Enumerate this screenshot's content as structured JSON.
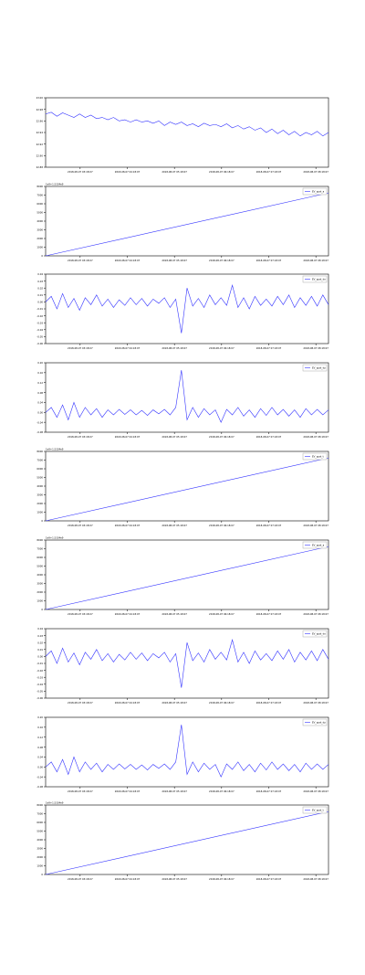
{
  "chart_data": [
    {
      "type": "line",
      "legend": "",
      "offset_label": "",
      "ylim": [
        22.88,
        23.0
      ],
      "yticks": [
        "22.88",
        "22.90",
        "22.92",
        "22.94",
        "22.96",
        "22.98",
        "23.00"
      ],
      "xticks": [
        "2018-08-07 03:18:07",
        "2018-08-07 04:18:07",
        "2018-08-07 05:18:07",
        "2018-08-07 06:18:07",
        "2018-08-07 07:18:07",
        "2018-08-07 08:18:07"
      ],
      "ticks_visible_on_x": true,
      "color": "#3333ff",
      "series": [
        {
          "x": [
            0,
            2,
            4,
            6,
            8,
            10,
            12,
            14,
            16,
            18,
            20,
            22,
            24,
            26,
            28,
            30,
            32,
            34,
            36,
            38,
            40,
            42,
            44,
            46,
            48,
            50,
            52,
            54,
            56,
            58,
            60,
            62,
            64,
            66,
            68,
            70,
            72,
            74,
            76,
            78,
            80,
            82,
            84,
            86,
            88,
            90,
            92,
            94,
            96,
            98,
            100
          ],
          "values": [
            22.972,
            22.975,
            22.968,
            22.974,
            22.97,
            22.966,
            22.972,
            22.966,
            22.97,
            22.964,
            22.966,
            22.962,
            22.966,
            22.96,
            22.962,
            22.958,
            22.962,
            22.958,
            22.96,
            22.956,
            22.96,
            22.952,
            22.958,
            22.954,
            22.958,
            22.952,
            22.955,
            22.95,
            22.956,
            22.952,
            22.954,
            22.95,
            22.955,
            22.948,
            22.952,
            22.946,
            22.95,
            22.944,
            22.948,
            22.94,
            22.946,
            22.938,
            22.944,
            22.936,
            22.942,
            22.934,
            22.94,
            22.936,
            22.942,
            22.934,
            22.94
          ]
        }
      ]
    },
    {
      "type": "line",
      "legend": "EV_spot_a",
      "offset_label": "1e9+1.5334e9",
      "ylim": [
        0,
        8000
      ],
      "yticks": [
        "0",
        "1000",
        "2000",
        "3000",
        "4000",
        "5000",
        "6000",
        "7000",
        "8000"
      ],
      "xticks": [
        "2018-08-07 03:18:07",
        "2018-08-07 04:18:07",
        "2018-08-07 05:18:07",
        "2018-08-07 06:18:07",
        "2018-08-07 07:18:07",
        "2018-08-07 08:18:07"
      ],
      "color": "#3333ff",
      "series": [
        {
          "x": [
            0,
            100
          ],
          "values": [
            0,
            7250
          ]
        }
      ]
    },
    {
      "type": "line",
      "legend": "EV_spot_dx",
      "offset_label": "",
      "ylim": [
        -0.06,
        0.04
      ],
      "yticks": [
        "-0.06",
        "-0.05",
        "-0.04",
        "-0.03",
        "-0.02",
        "-0.01",
        "0.00",
        "0.01",
        "0.02",
        "0.03",
        "0.04"
      ],
      "xticks": [
        "2018-08-07 03:18:07",
        "2018-08-07 04:18:07",
        "2018-08-07 05:18:07",
        "2018-08-07 06:18:07",
        "2018-08-07 07:18:07",
        "2018-08-07 08:18:07"
      ],
      "color": "#3333ff",
      "series": [
        {
          "x": [
            0,
            2,
            4,
            6,
            8,
            10,
            12,
            14,
            16,
            18,
            20,
            22,
            24,
            26,
            28,
            30,
            32,
            34,
            36,
            38,
            40,
            42,
            44,
            46,
            48,
            50,
            52,
            54,
            56,
            58,
            60,
            62,
            64,
            66,
            68,
            70,
            72,
            74,
            76,
            78,
            80,
            82,
            84,
            86,
            88,
            90,
            92,
            94,
            96,
            98,
            100
          ],
          "values": [
            0,
            0.008,
            -0.01,
            0.012,
            -0.008,
            0.005,
            -0.012,
            0.006,
            -0.004,
            0.01,
            -0.006,
            0.004,
            -0.008,
            0.003,
            -0.005,
            0.006,
            -0.004,
            0.005,
            -0.006,
            0.004,
            -0.002,
            0.006,
            -0.008,
            0.004,
            -0.045,
            0.02,
            -0.006,
            0.005,
            -0.008,
            0.01,
            -0.004,
            0.006,
            -0.005,
            0.024,
            -0.008,
            0.006,
            -0.01,
            0.008,
            -0.005,
            0.004,
            -0.006,
            0.008,
            -0.004,
            0.01,
            -0.008,
            0.006,
            -0.005,
            0.008,
            -0.006,
            0.01,
            -0.004
          ]
        }
      ]
    },
    {
      "type": "line",
      "legend": "EV_spot_dy",
      "offset_label": "",
      "ylim": [
        -0.08,
        0.2
      ],
      "yticks": [
        "-0.08",
        "-0.04",
        "0.00",
        "0.04",
        "0.08",
        "0.12",
        "0.16",
        "0.20"
      ],
      "xticks": [
        "2018-08-07 03:18:07",
        "2018-08-07 04:18:07",
        "2018-08-07 05:18:07",
        "2018-08-07 06:18:07",
        "2018-08-07 07:18:07",
        "2018-08-07 08:18:07"
      ],
      "color": "#3333ff",
      "series": [
        {
          "x": [
            0,
            2,
            4,
            6,
            8,
            10,
            12,
            14,
            16,
            18,
            20,
            22,
            24,
            26,
            28,
            30,
            32,
            34,
            36,
            38,
            40,
            42,
            44,
            46,
            48,
            50,
            52,
            54,
            56,
            58,
            60,
            62,
            64,
            66,
            68,
            70,
            72,
            74,
            76,
            78,
            80,
            82,
            84,
            86,
            88,
            90,
            92,
            94,
            96,
            98,
            100
          ],
          "values": [
            0,
            0.02,
            -0.02,
            0.03,
            -0.03,
            0.04,
            -0.02,
            0.02,
            -0.01,
            0.015,
            -0.02,
            0.01,
            -0.01,
            0.012,
            -0.008,
            0.01,
            -0.01,
            0.008,
            -0.012,
            0.01,
            -0.006,
            0.012,
            -0.01,
            0.02,
            0.17,
            -0.03,
            0.02,
            -0.02,
            0.015,
            -0.01,
            0.01,
            -0.04,
            0.012,
            -0.01,
            0.02,
            -0.015,
            0.01,
            -0.02,
            0.015,
            -0.012,
            0.02,
            -0.01,
            0.012,
            -0.015,
            0.01,
            -0.02,
            0.015,
            -0.01,
            0.012,
            -0.01,
            0.01
          ]
        }
      ]
    },
    {
      "type": "line",
      "legend": "EV_spot_t",
      "offset_label": "1e9+1.5334e9",
      "ylim": [
        0,
        8000
      ],
      "yticks": [
        "0",
        "1000",
        "2000",
        "3000",
        "4000",
        "5000",
        "6000",
        "7000",
        "8000"
      ],
      "xticks": [
        "2018-08-07 03:18:07",
        "2018-08-07 04:18:07",
        "2018-08-07 05:18:07",
        "2018-08-07 06:18:07",
        "2018-08-07 07:18:07",
        "2018-08-07 08:18:07"
      ],
      "color": "#3333ff",
      "series": [
        {
          "x": [
            0,
            100
          ],
          "values": [
            0,
            7250
          ]
        }
      ]
    },
    {
      "type": "line",
      "legend": "EV_spot_a",
      "offset_label": "1e9+1.5334e9",
      "ylim": [
        0,
        8000
      ],
      "yticks": [
        "0",
        "1000",
        "2000",
        "3000",
        "4000",
        "5000",
        "6000",
        "7000",
        "8000"
      ],
      "xticks": [
        "2018-08-07 03:18:07",
        "2018-08-07 04:18:07",
        "2018-08-07 05:18:07",
        "2018-08-07 06:18:07",
        "2018-08-07 07:18:07",
        "2018-08-07 08:18:07"
      ],
      "color": "#3333ff",
      "series": [
        {
          "x": [
            0,
            100
          ],
          "values": [
            0,
            7250
          ]
        }
      ]
    },
    {
      "type": "line",
      "legend": "EV_spot_dx",
      "offset_label": "",
      "ylim": [
        -0.06,
        0.04
      ],
      "yticks": [
        "-0.06",
        "-0.05",
        "-0.04",
        "-0.03",
        "-0.02",
        "-0.01",
        "0.00",
        "0.01",
        "0.02",
        "0.03",
        "0.04"
      ],
      "xticks": [
        "2018-08-07 03:18:07",
        "2018-08-07 04:18:07",
        "2018-08-07 05:18:07",
        "2018-08-07 06:18:07",
        "2018-08-07 07:18:07",
        "2018-08-07 08:18:07"
      ],
      "color": "#3333ff",
      "series": [
        {
          "x": [
            0,
            2,
            4,
            6,
            8,
            10,
            12,
            14,
            16,
            18,
            20,
            22,
            24,
            26,
            28,
            30,
            32,
            34,
            36,
            38,
            40,
            42,
            44,
            46,
            48,
            50,
            52,
            54,
            56,
            58,
            60,
            62,
            64,
            66,
            68,
            70,
            72,
            74,
            76,
            78,
            80,
            82,
            84,
            86,
            88,
            90,
            92,
            94,
            96,
            98,
            100
          ],
          "values": [
            0,
            0.008,
            -0.01,
            0.012,
            -0.008,
            0.005,
            -0.012,
            0.006,
            -0.004,
            0.01,
            -0.006,
            0.004,
            -0.008,
            0.003,
            -0.005,
            0.006,
            -0.004,
            0.005,
            -0.006,
            0.004,
            -0.002,
            0.006,
            -0.008,
            0.004,
            -0.045,
            0.02,
            -0.006,
            0.005,
            -0.008,
            0.01,
            -0.004,
            0.006,
            -0.005,
            0.024,
            -0.008,
            0.006,
            -0.01,
            0.008,
            -0.005,
            0.004,
            -0.006,
            0.008,
            -0.004,
            0.01,
            -0.008,
            0.006,
            -0.005,
            0.008,
            -0.006,
            0.01,
            -0.004
          ]
        }
      ]
    },
    {
      "type": "line",
      "legend": "EV_spot_dy",
      "offset_label": "",
      "ylim": [
        -0.08,
        0.2
      ],
      "yticks": [
        "-0.08",
        "-0.04",
        "0.00",
        "0.04",
        "0.08",
        "0.12",
        "0.16",
        "0.20"
      ],
      "xticks": [
        "2018-08-07 03:18:07",
        "2018-08-07 04:18:07",
        "2018-08-07 05:18:07",
        "2018-08-07 06:18:07",
        "2018-08-07 07:18:07",
        "2018-08-07 08:18:07"
      ],
      "color": "#3333ff",
      "series": [
        {
          "x": [
            0,
            2,
            4,
            6,
            8,
            10,
            12,
            14,
            16,
            18,
            20,
            22,
            24,
            26,
            28,
            30,
            32,
            34,
            36,
            38,
            40,
            42,
            44,
            46,
            48,
            50,
            52,
            54,
            56,
            58,
            60,
            62,
            64,
            66,
            68,
            70,
            72,
            74,
            76,
            78,
            80,
            82,
            84,
            86,
            88,
            90,
            92,
            94,
            96,
            98,
            100
          ],
          "values": [
            0,
            0.02,
            -0.02,
            0.03,
            -0.03,
            0.04,
            -0.02,
            0.02,
            -0.01,
            0.015,
            -0.02,
            0.01,
            -0.01,
            0.012,
            -0.008,
            0.01,
            -0.01,
            0.008,
            -0.012,
            0.01,
            -0.006,
            0.012,
            -0.01,
            0.02,
            0.17,
            -0.03,
            0.02,
            -0.02,
            0.015,
            -0.01,
            0.01,
            -0.04,
            0.012,
            -0.01,
            0.02,
            -0.015,
            0.01,
            -0.02,
            0.015,
            -0.012,
            0.02,
            -0.01,
            0.012,
            -0.015,
            0.01,
            -0.02,
            0.015,
            -0.01,
            0.012,
            -0.01,
            0.01
          ]
        }
      ]
    },
    {
      "type": "line",
      "legend": "EV_spot_t",
      "offset_label": "1e9+1.5334e9",
      "ylim": [
        0,
        8000
      ],
      "yticks": [
        "0",
        "1000",
        "2000",
        "3000",
        "4000",
        "5000",
        "6000",
        "7000",
        "8000"
      ],
      "xticks": [
        "2018-08-07 03:18:07",
        "2018-08-07 04:18:07",
        "2018-08-07 05:18:07",
        "2018-08-07 06:18:07",
        "2018-08-07 07:18:07",
        "2018-08-07 08:18:07"
      ],
      "color": "#3333ff",
      "series": [
        {
          "x": [
            0,
            100
          ],
          "values": [
            0,
            7250
          ]
        }
      ]
    }
  ]
}
